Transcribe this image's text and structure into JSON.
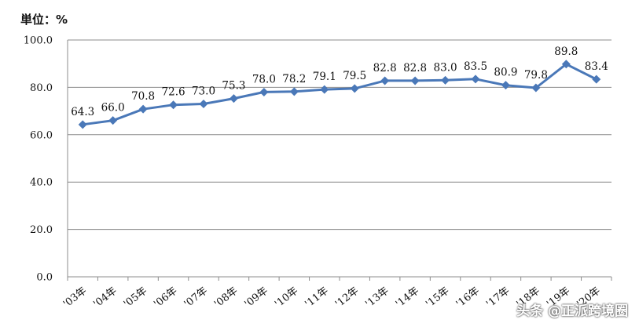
{
  "unit_label": "単位：%",
  "watermark": "头条 @正派跨境圈",
  "chart_data": {
    "type": "line",
    "title": "",
    "xlabel": "",
    "ylabel": "単位：%",
    "categories": [
      "'03年",
      "'04年",
      "'05年",
      "'06年",
      "'07年",
      "'08年",
      "'09年",
      "'10年",
      "'11年",
      "'12年",
      "'13年",
      "'14年",
      "'15年",
      "'16年",
      "'17年",
      "'18年",
      "'19年",
      "'20年"
    ],
    "values": [
      64.3,
      66.0,
      70.8,
      72.6,
      73.0,
      75.3,
      78.0,
      78.2,
      79.1,
      79.5,
      82.8,
      82.8,
      83.0,
      83.5,
      80.9,
      79.8,
      89.8,
      83.4
    ],
    "labels": [
      "64.3",
      "66.0",
      "70.8",
      "72.6",
      "73.0",
      "75.3",
      "78.0",
      "78.2",
      "79.1",
      "79.5",
      "82.8",
      "82.8",
      "83.0",
      "83.5",
      "80.9",
      "79.8",
      "89.8",
      "83.4"
    ],
    "y_ticks": [
      "0.0",
      "20.0",
      "40.0",
      "60.0",
      "80.0",
      "100.0"
    ],
    "ylim": [
      0,
      100
    ],
    "grid": true,
    "line_color": "#4a78b8",
    "grid_color": "#8c8c8c"
  }
}
